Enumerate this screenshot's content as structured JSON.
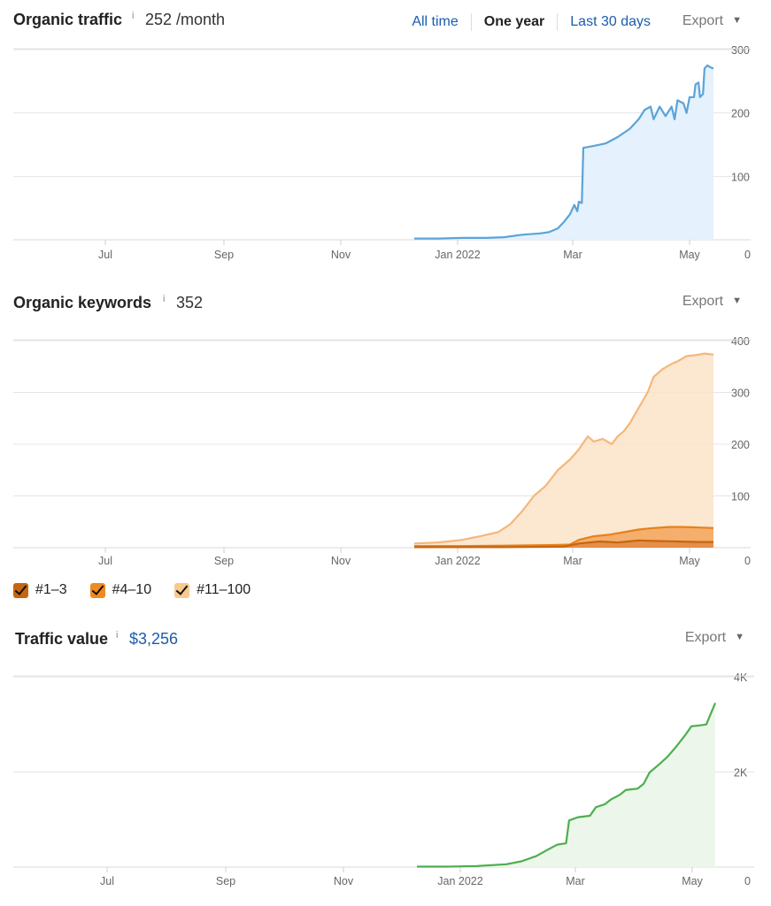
{
  "traffic": {
    "title": "Organic traffic",
    "info": "i",
    "metric": "252 /month",
    "timeframes": [
      {
        "label": "All time",
        "active": false
      },
      {
        "label": "One year",
        "active": true
      },
      {
        "label": "Last 30 days",
        "active": false
      }
    ],
    "export_label": "Export",
    "caret": "▼"
  },
  "keywords": {
    "title": "Organic keywords",
    "info": "i",
    "metric": "352",
    "export_label": "Export",
    "caret": "▼",
    "legend": [
      {
        "label": "#1–3",
        "color": "#c6660f"
      },
      {
        "label": "#4–10",
        "color": "#f08a1d"
      },
      {
        "label": "#11–100",
        "color": "#f9c98d"
      }
    ]
  },
  "value": {
    "title": "Traffic value",
    "info": "i",
    "metric": "$3,256",
    "export_label": "Export",
    "caret": "▼"
  },
  "chart_data": [
    {
      "type": "area",
      "x_labels": [
        "Jul",
        "Sep",
        "Nov",
        "Jan 2022",
        "Mar",
        "May"
      ],
      "y_ticks": [
        "300",
        "200",
        "100",
        "0"
      ],
      "ylim": [
        0,
        300
      ],
      "grid": true,
      "colors": {
        "line": "#5ba3d9",
        "fill": "#e5f1fc"
      },
      "series": [
        {
          "values": [
            [
              0.0,
              2
            ],
            [
              0.08,
              2
            ],
            [
              0.16,
              3
            ],
            [
              0.24,
              3
            ],
            [
              0.3,
              4
            ],
            [
              0.36,
              8
            ],
            [
              0.42,
              10
            ],
            [
              0.45,
              12
            ],
            [
              0.48,
              18
            ],
            [
              0.5,
              28
            ],
            [
              0.52,
              40
            ],
            [
              0.535,
              55
            ],
            [
              0.545,
              45
            ],
            [
              0.55,
              60
            ],
            [
              0.56,
              58
            ],
            [
              0.565,
              145
            ],
            [
              0.6,
              148
            ],
            [
              0.64,
              152
            ],
            [
              0.68,
              162
            ],
            [
              0.72,
              175
            ],
            [
              0.75,
              190
            ],
            [
              0.77,
              205
            ],
            [
              0.79,
              210
            ],
            [
              0.8,
              190
            ],
            [
              0.82,
              210
            ],
            [
              0.84,
              195
            ],
            [
              0.86,
              210
            ],
            [
              0.87,
              190
            ],
            [
              0.88,
              220
            ],
            [
              0.9,
              215
            ],
            [
              0.91,
              200
            ],
            [
              0.92,
              225
            ],
            [
              0.935,
              225
            ],
            [
              0.94,
              245
            ],
            [
              0.95,
              248
            ],
            [
              0.955,
              225
            ],
            [
              0.965,
              230
            ],
            [
              0.97,
              270
            ],
            [
              0.98,
              275
            ],
            [
              0.99,
              272
            ],
            [
              1.0,
              270
            ]
          ]
        }
      ]
    },
    {
      "type": "area",
      "x_labels": [
        "Jul",
        "Sep",
        "Nov",
        "Jan 2022",
        "Mar",
        "May"
      ],
      "y_ticks": [
        "400",
        "300",
        "200",
        "100",
        "0"
      ],
      "ylim": [
        0,
        400
      ],
      "grid": true,
      "series": [
        {
          "name": "#11–100",
          "color": "#f5b77a",
          "fill": "#fce3c8",
          "values": [
            [
              0.0,
              8
            ],
            [
              0.08,
              10
            ],
            [
              0.16,
              15
            ],
            [
              0.22,
              22
            ],
            [
              0.28,
              30
            ],
            [
              0.32,
              45
            ],
            [
              0.36,
              70
            ],
            [
              0.4,
              100
            ],
            [
              0.44,
              120
            ],
            [
              0.48,
              150
            ],
            [
              0.52,
              170
            ],
            [
              0.55,
              190
            ],
            [
              0.58,
              215
            ],
            [
              0.6,
              205
            ],
            [
              0.63,
              210
            ],
            [
              0.66,
              200
            ],
            [
              0.68,
              215
            ],
            [
              0.7,
              225
            ],
            [
              0.72,
              240
            ],
            [
              0.75,
              270
            ],
            [
              0.78,
              300
            ],
            [
              0.8,
              330
            ],
            [
              0.83,
              345
            ],
            [
              0.86,
              355
            ],
            [
              0.88,
              360
            ],
            [
              0.91,
              370
            ],
            [
              0.94,
              372
            ],
            [
              0.97,
              375
            ],
            [
              1.0,
              373
            ]
          ]
        },
        {
          "name": "#4–10",
          "color": "#e8801c",
          "fill": "#f3a55c",
          "values": [
            [
              0.0,
              3
            ],
            [
              0.15,
              3
            ],
            [
              0.3,
              4
            ],
            [
              0.45,
              5
            ],
            [
              0.52,
              6
            ],
            [
              0.55,
              15
            ],
            [
              0.6,
              22
            ],
            [
              0.65,
              25
            ],
            [
              0.7,
              30
            ],
            [
              0.75,
              35
            ],
            [
              0.8,
              38
            ],
            [
              0.85,
              40
            ],
            [
              0.9,
              40
            ],
            [
              0.95,
              39
            ],
            [
              1.0,
              38
            ]
          ]
        },
        {
          "name": "#1–3",
          "color": "#c6660f",
          "fill": "#e08a44",
          "values": [
            [
              0.0,
              1
            ],
            [
              0.3,
              1
            ],
            [
              0.5,
              2
            ],
            [
              0.55,
              8
            ],
            [
              0.62,
              12
            ],
            [
              0.68,
              10
            ],
            [
              0.75,
              14
            ],
            [
              0.8,
              13
            ],
            [
              0.88,
              12
            ],
            [
              0.95,
              11
            ],
            [
              1.0,
              11
            ]
          ]
        }
      ]
    },
    {
      "type": "area",
      "x_labels": [
        "Jul",
        "Sep",
        "Nov",
        "Jan 2022",
        "Mar",
        "May"
      ],
      "y_ticks": [
        "4K",
        "2K",
        "0"
      ],
      "ylim": [
        0,
        4000
      ],
      "grid": true,
      "colors": {
        "line": "#4caf50",
        "fill": "#edf6ea"
      },
      "series": [
        {
          "values": [
            [
              0.0,
              10
            ],
            [
              0.1,
              10
            ],
            [
              0.2,
              20
            ],
            [
              0.3,
              60
            ],
            [
              0.35,
              120
            ],
            [
              0.4,
              230
            ],
            [
              0.44,
              370
            ],
            [
              0.47,
              470
            ],
            [
              0.5,
              500
            ],
            [
              0.51,
              980
            ],
            [
              0.54,
              1050
            ],
            [
              0.58,
              1080
            ],
            [
              0.6,
              1260
            ],
            [
              0.63,
              1320
            ],
            [
              0.65,
              1420
            ],
            [
              0.68,
              1520
            ],
            [
              0.7,
              1620
            ],
            [
              0.74,
              1650
            ],
            [
              0.76,
              1750
            ],
            [
              0.78,
              1990
            ],
            [
              0.81,
              2150
            ],
            [
              0.84,
              2320
            ],
            [
              0.87,
              2540
            ],
            [
              0.9,
              2780
            ],
            [
              0.92,
              2960
            ],
            [
              0.95,
              2980
            ],
            [
              0.97,
              3000
            ],
            [
              1.0,
              3450
            ]
          ]
        }
      ]
    }
  ]
}
